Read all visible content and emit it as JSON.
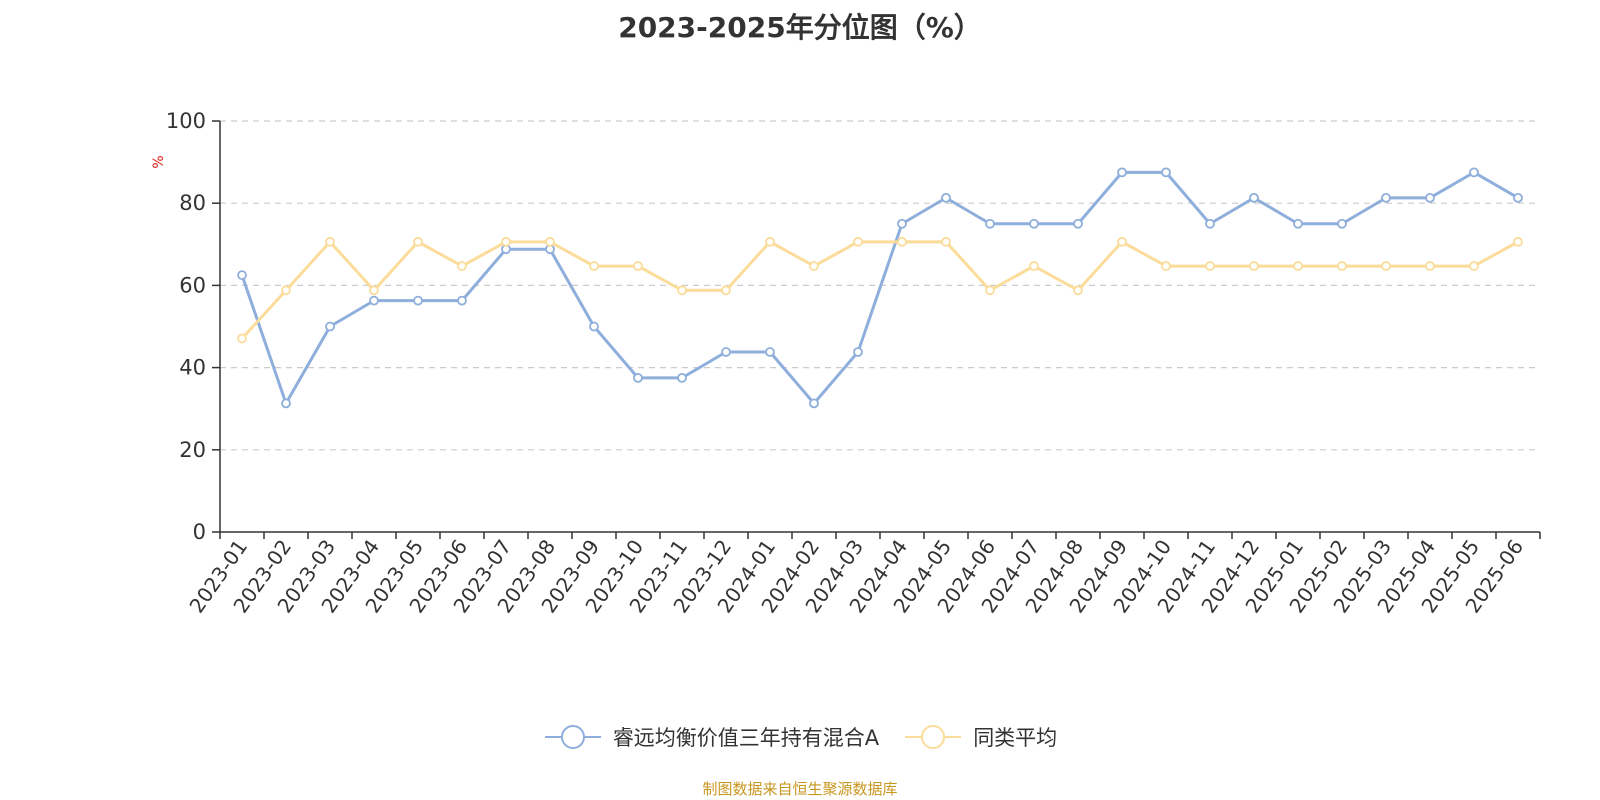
{
  "title": "2023-2025年分位图（%）",
  "source_note": "制图数据来自恒生聚源数据库",
  "chart_data": {
    "type": "line",
    "title": "2023-2025年分位图（%）",
    "ylabel": "%",
    "ylim": [
      0,
      100
    ],
    "y_ticks": [
      0,
      20,
      40,
      60,
      80,
      100
    ],
    "grid": true,
    "legend_position": "bottom",
    "categories": [
      "2023-01",
      "2023-02",
      "2023-03",
      "2023-04",
      "2023-05",
      "2023-06",
      "2023-07",
      "2023-08",
      "2023-09",
      "2023-10",
      "2023-11",
      "2023-12",
      "2024-01",
      "2024-02",
      "2024-03",
      "2024-04",
      "2024-05",
      "2024-06",
      "2024-07",
      "2024-08",
      "2024-09",
      "2024-10",
      "2024-11",
      "2024-12",
      "2025-01",
      "2025-02",
      "2025-03",
      "2025-04",
      "2025-05",
      "2025-06"
    ],
    "series": [
      {
        "name": "睿远均衡价值三年持有混合A",
        "color": "#8eaedb",
        "values": [
          62.5,
          31.3,
          50,
          56.3,
          56.3,
          56.3,
          68.8,
          68.8,
          50,
          37.5,
          37.5,
          43.8,
          43.8,
          31.3,
          43.8,
          75,
          81.3,
          75,
          75,
          75,
          87.5,
          87.5,
          75,
          81.3,
          75,
          75,
          81.3,
          81.3,
          87.5,
          81.3
        ]
      },
      {
        "name": "同类平均",
        "color": "#fbdc9a",
        "values": [
          47.1,
          58.8,
          70.6,
          58.8,
          70.6,
          64.7,
          70.6,
          70.6,
          64.7,
          64.7,
          58.8,
          58.8,
          70.6,
          64.7,
          70.6,
          70.6,
          70.6,
          58.8,
          64.7,
          58.8,
          70.6,
          64.7,
          64.7,
          64.7,
          64.7,
          64.7,
          64.7,
          64.7,
          64.7,
          70.6
        ]
      }
    ]
  }
}
